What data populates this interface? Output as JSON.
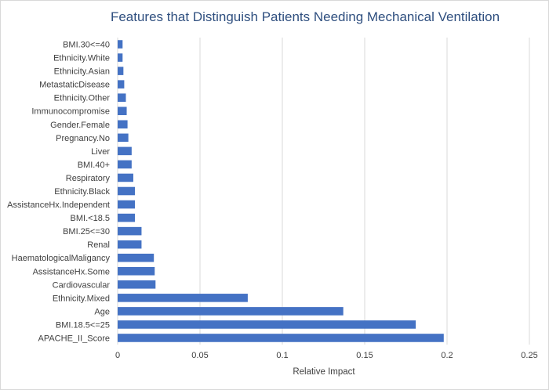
{
  "chart_data": {
    "type": "bar",
    "orientation": "horizontal",
    "title": "Features that Distinguish Patients Needing Mechanical Ventilation",
    "xlabel": "Relative Impact",
    "ylabel": "",
    "xlim": [
      0,
      0.25
    ],
    "xticks": [
      "0",
      "0.05",
      "0.1",
      "0.15",
      "0.2",
      "0.25"
    ],
    "grid": true,
    "bar_color": "#4472c4",
    "categories": [
      "APACHE_II_Score",
      "BMI.18.5<=25",
      "Age",
      "Ethnicity.Mixed",
      "Cardiovascular",
      "AssistanceHx.Some",
      "HaematologicalMaligancy",
      "Renal",
      "BMI.25<=30",
      "BMI.<18.5",
      "AssistanceHx.Independent",
      "Ethnicity.Black",
      "Respiratory",
      "BMI.40+",
      "Liver",
      "Pregnancy.No",
      "Gender.Female",
      "Immunocompromise",
      "Ethnicity.Other",
      "MetastaticDisease",
      "Ethnicity.Asian",
      "Ethnicity.White",
      "BMI.30<=40"
    ],
    "values": [
      0.198,
      0.181,
      0.137,
      0.079,
      0.023,
      0.0225,
      0.022,
      0.0145,
      0.0145,
      0.0105,
      0.0105,
      0.0105,
      0.0095,
      0.0085,
      0.0085,
      0.0065,
      0.006,
      0.0055,
      0.005,
      0.004,
      0.0035,
      0.003,
      0.003
    ]
  }
}
